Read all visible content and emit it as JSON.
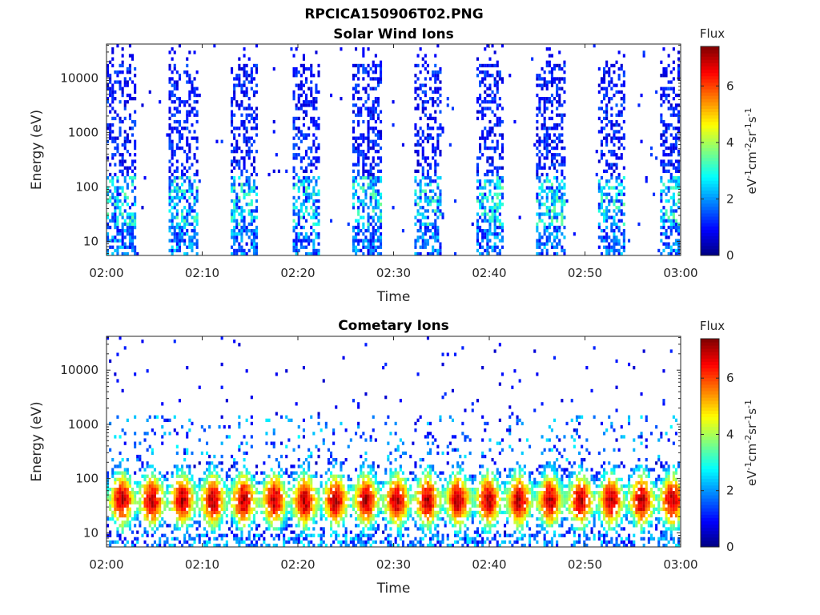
{
  "figure": {
    "title": "RPCICA150906T02.PNG"
  },
  "chart_data": [
    {
      "type": "heatmap",
      "title": "Solar Wind Ions",
      "xlabel": "Time",
      "ylabel": "Energy (eV)",
      "x_ticks": [
        "02:00",
        "02:10",
        "02:20",
        "02:30",
        "02:40",
        "02:50",
        "03:00"
      ],
      "xlim": [
        "02:00",
        "03:00"
      ],
      "y_ticks": [
        "10",
        "100",
        "1000",
        "10000"
      ],
      "ylim": [
        5.5,
        42000
      ],
      "y_scale": "log",
      "grid": false,
      "colorbar": {
        "title": "Flux",
        "label": "eV-1cm-2sr-1s-1",
        "ticks": [
          "0",
          "2",
          "4",
          "6"
        ],
        "range": [
          0,
          7.4
        ],
        "colormap": "jet"
      },
      "scan_start_minutes": [
        0.0,
        6.4,
        12.8,
        19.2,
        25.6,
        32.0,
        38.4,
        44.8,
        51.2,
        57.6
      ],
      "scan_duration_minutes": 3.0,
      "pattern": "solar-wind"
    },
    {
      "type": "heatmap",
      "title": "Cometary Ions",
      "xlabel": "Time",
      "ylabel": "Energy (eV)",
      "x_ticks": [
        "02:00",
        "02:10",
        "02:20",
        "02:30",
        "02:40",
        "02:50",
        "03:00"
      ],
      "xlim": [
        "02:00",
        "03:00"
      ],
      "y_ticks": [
        "10",
        "100",
        "1000",
        "10000"
      ],
      "ylim": [
        5.5,
        42000
      ],
      "y_scale": "log",
      "grid": false,
      "colorbar": {
        "title": "Flux",
        "label": "eV-1cm-2sr-1s-1",
        "ticks": [
          "0",
          "2",
          "4",
          "6"
        ],
        "range": [
          0,
          7.4
        ],
        "colormap": "jet"
      },
      "peak_energy_eV": 40,
      "peak_flux": 7.0,
      "burst_minutes": [
        1.5,
        4.6,
        7.8,
        11.0,
        14.2,
        17.4,
        20.6,
        23.8,
        27.0,
        30.2,
        33.4,
        36.6,
        39.8,
        43.0,
        46.2,
        49.4,
        52.6,
        55.8,
        59.0
      ],
      "pattern": "cometary"
    }
  ]
}
